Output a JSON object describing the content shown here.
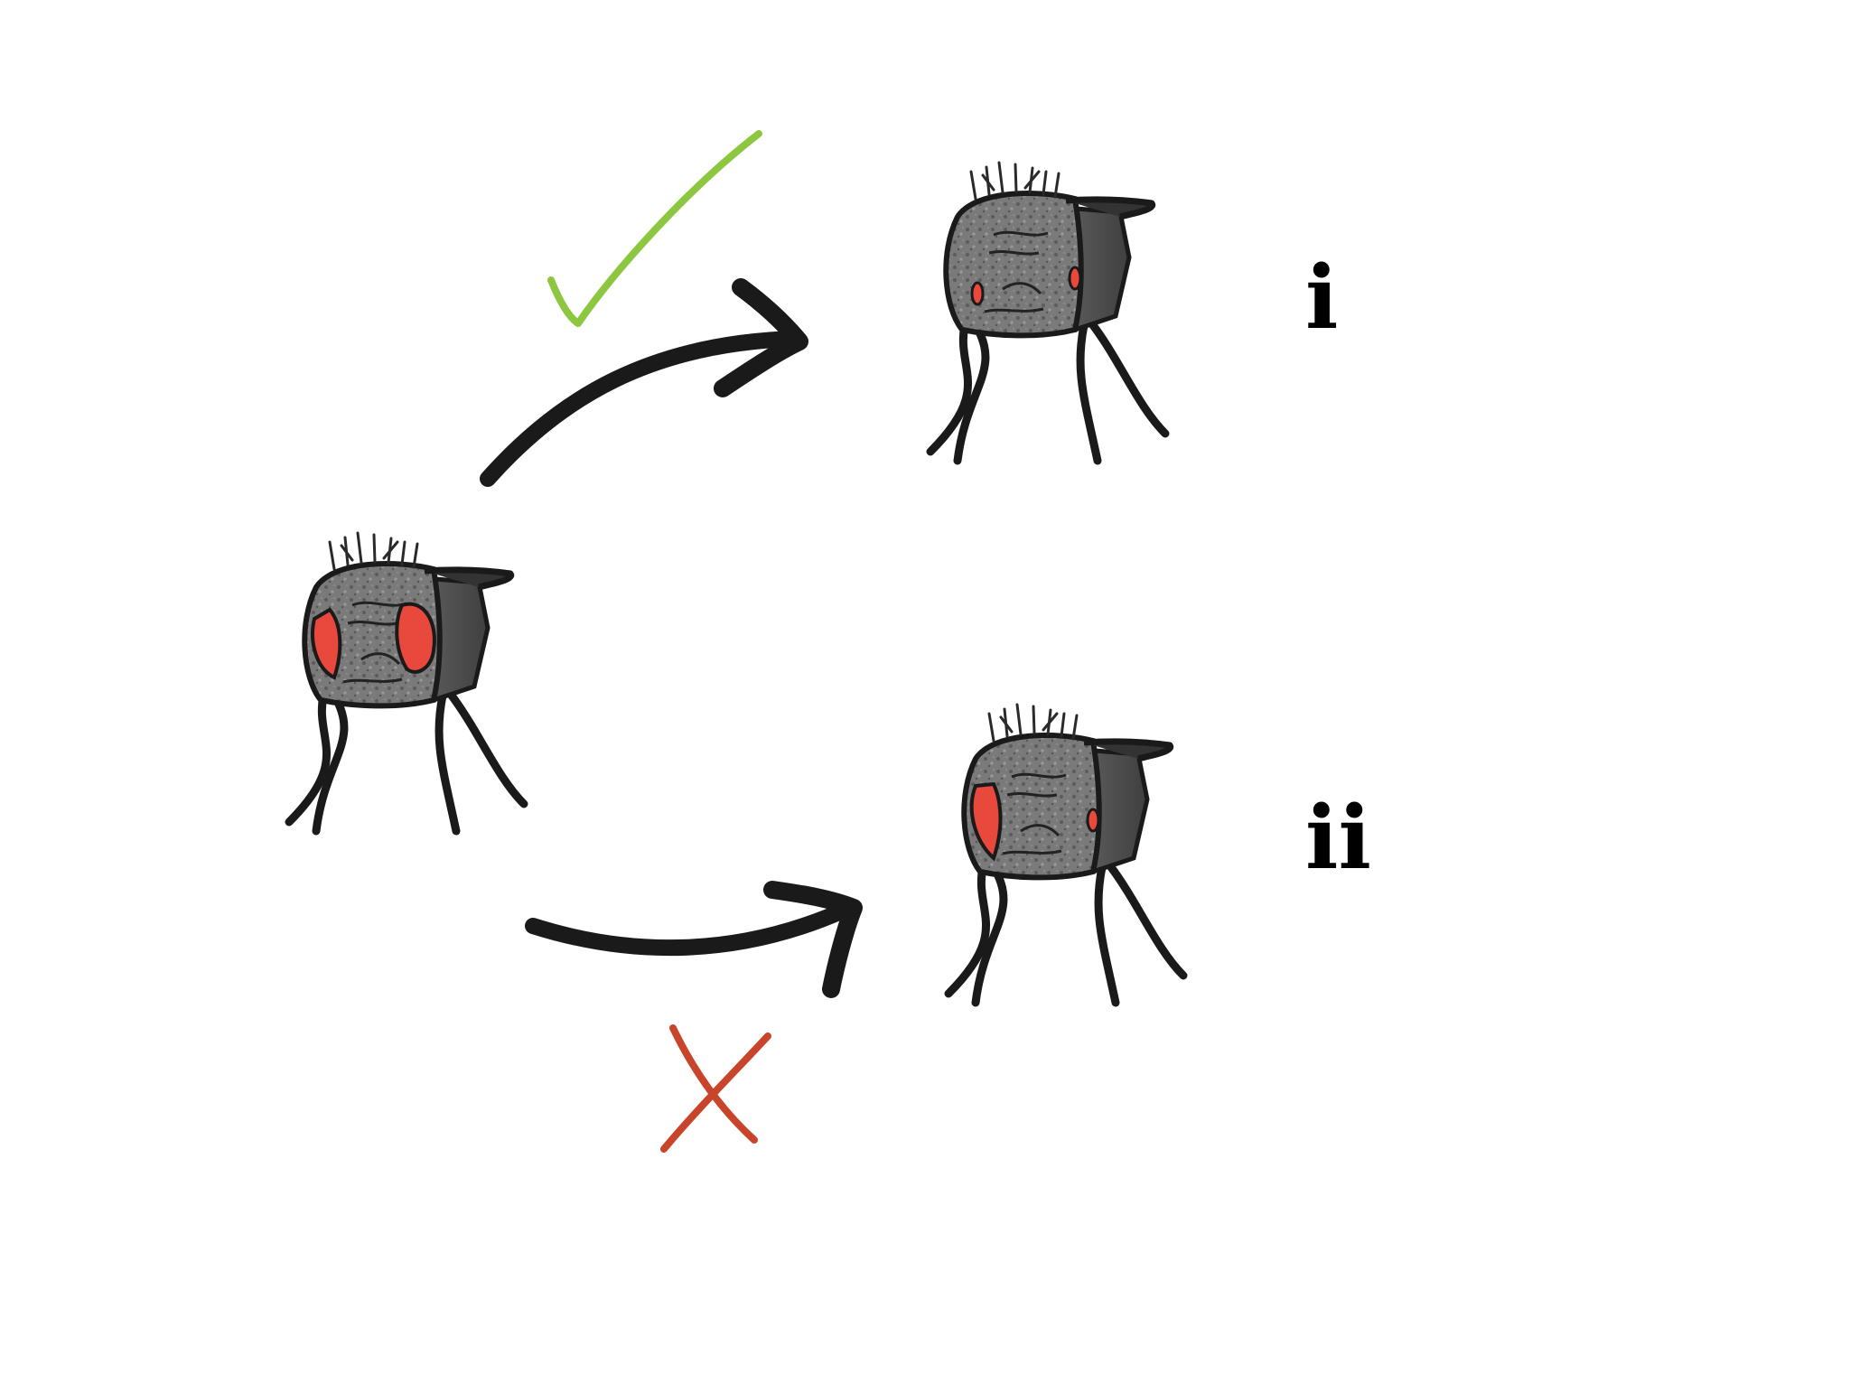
{
  "labels": {
    "top_outcome": "i",
    "bottom_outcome": "ii"
  },
  "colors": {
    "check": "#8dc63f",
    "cross": "#c8452b",
    "eye": "#e8493c",
    "body": "#6b6b6b",
    "outline": "#1a1a1a"
  },
  "icons": {
    "allowed": "check-mark-icon",
    "blocked": "cross-mark-icon"
  }
}
